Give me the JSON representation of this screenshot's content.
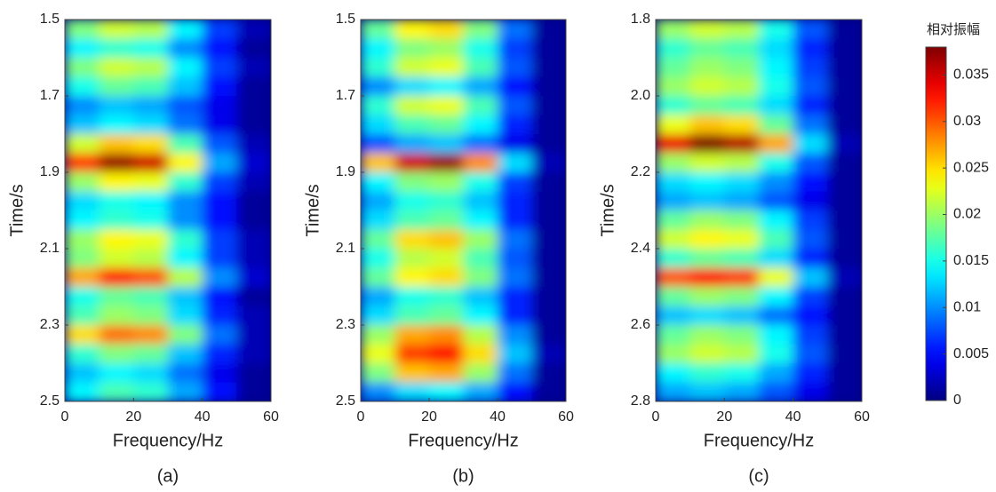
{
  "chart_data": [
    {
      "type": "heatmap",
      "subtitle": "(a)",
      "xlabel": "Frequency/Hz",
      "ylabel": "Time/s",
      "colormap": "jet",
      "y_reversed": true,
      "xlim": [
        0,
        60
      ],
      "ylim": [
        1.5,
        2.5
      ],
      "xticks": [
        0,
        20,
        40,
        60
      ],
      "yticks": [
        1.5,
        1.7,
        1.9,
        2.1,
        2.3,
        2.5
      ],
      "x": [
        5,
        15,
        25,
        35,
        45,
        55
      ],
      "y": [
        1.525,
        1.575,
        1.625,
        1.675,
        1.725,
        1.775,
        1.825,
        1.875,
        1.925,
        1.975,
        2.025,
        2.075,
        2.125,
        2.175,
        2.225,
        2.275,
        2.325,
        2.375,
        2.425,
        2.475
      ],
      "z": [
        [
          0.019,
          0.022,
          0.021,
          0.014,
          0.007,
          0.002
        ],
        [
          0.014,
          0.016,
          0.015,
          0.01,
          0.005,
          0.001
        ],
        [
          0.019,
          0.022,
          0.021,
          0.014,
          0.007,
          0.002
        ],
        [
          0.015,
          0.018,
          0.017,
          0.012,
          0.005,
          0.001
        ],
        [
          0.01,
          0.012,
          0.011,
          0.008,
          0.004,
          0.001
        ],
        [
          0.012,
          0.014,
          0.013,
          0.009,
          0.004,
          0.001
        ],
        [
          0.022,
          0.026,
          0.025,
          0.017,
          0.008,
          0.002
        ],
        [
          0.031,
          0.037,
          0.035,
          0.024,
          0.011,
          0.003
        ],
        [
          0.02,
          0.024,
          0.023,
          0.016,
          0.007,
          0.002
        ],
        [
          0.013,
          0.015,
          0.014,
          0.01,
          0.005,
          0.001
        ],
        [
          0.014,
          0.016,
          0.015,
          0.01,
          0.005,
          0.001
        ],
        [
          0.02,
          0.024,
          0.023,
          0.016,
          0.007,
          0.002
        ],
        [
          0.019,
          0.022,
          0.021,
          0.014,
          0.007,
          0.002
        ],
        [
          0.027,
          0.032,
          0.03,
          0.021,
          0.01,
          0.003
        ],
        [
          0.015,
          0.018,
          0.017,
          0.012,
          0.005,
          0.001
        ],
        [
          0.017,
          0.02,
          0.019,
          0.013,
          0.006,
          0.002
        ],
        [
          0.025,
          0.029,
          0.028,
          0.019,
          0.009,
          0.002
        ],
        [
          0.016,
          0.019,
          0.018,
          0.012,
          0.006,
          0.002
        ],
        [
          0.012,
          0.014,
          0.013,
          0.009,
          0.004,
          0.001
        ],
        [
          0.014,
          0.017,
          0.016,
          0.011,
          0.005,
          0.001
        ]
      ]
    },
    {
      "type": "heatmap",
      "subtitle": "(b)",
      "xlabel": "Frequency/Hz",
      "ylabel": "Time/s",
      "colormap": "jet",
      "y_reversed": true,
      "xlim": [
        0,
        60
      ],
      "ylim": [
        1.5,
        2.5
      ],
      "xticks": [
        0,
        20,
        40,
        60
      ],
      "yticks": [
        1.5,
        1.7,
        1.9,
        2.1,
        2.3,
        2.5
      ],
      "x": [
        5,
        15,
        25,
        35,
        45,
        55
      ],
      "y": [
        1.525,
        1.575,
        1.625,
        1.675,
        1.725,
        1.775,
        1.825,
        1.875,
        1.925,
        1.975,
        2.025,
        2.075,
        2.125,
        2.175,
        2.225,
        2.275,
        2.325,
        2.375,
        2.425,
        2.475
      ],
      "z": [
        [
          0.018,
          0.024,
          0.025,
          0.019,
          0.009,
          0.001
        ],
        [
          0.014,
          0.019,
          0.02,
          0.015,
          0.007,
          0.001
        ],
        [
          0.016,
          0.022,
          0.023,
          0.017,
          0.008,
          0.001
        ],
        [
          0.01,
          0.013,
          0.014,
          0.011,
          0.005,
          0.001
        ],
        [
          0.016,
          0.022,
          0.023,
          0.017,
          0.008,
          0.001
        ],
        [
          0.013,
          0.017,
          0.018,
          0.014,
          0.006,
          0.001
        ],
        [
          0.008,
          0.011,
          0.012,
          0.009,
          0.004,
          0.001
        ],
        [
          0.026,
          0.035,
          0.037,
          0.028,
          0.013,
          0.002
        ],
        [
          0.014,
          0.019,
          0.02,
          0.015,
          0.007,
          0.001
        ],
        [
          0.011,
          0.015,
          0.016,
          0.012,
          0.006,
          0.001
        ],
        [
          0.013,
          0.017,
          0.018,
          0.014,
          0.006,
          0.001
        ],
        [
          0.018,
          0.025,
          0.026,
          0.02,
          0.009,
          0.001
        ],
        [
          0.015,
          0.021,
          0.022,
          0.017,
          0.008,
          0.001
        ],
        [
          0.018,
          0.024,
          0.025,
          0.019,
          0.009,
          0.001
        ],
        [
          0.011,
          0.015,
          0.016,
          0.012,
          0.006,
          0.001
        ],
        [
          0.013,
          0.017,
          0.018,
          0.014,
          0.006,
          0.001
        ],
        [
          0.02,
          0.027,
          0.028,
          0.021,
          0.01,
          0.001
        ],
        [
          0.023,
          0.031,
          0.033,
          0.025,
          0.012,
          0.002
        ],
        [
          0.019,
          0.026,
          0.027,
          0.02,
          0.009,
          0.001
        ],
        [
          0.01,
          0.013,
          0.014,
          0.011,
          0.005,
          0.001
        ]
      ]
    },
    {
      "type": "heatmap",
      "subtitle": "(c)",
      "xlabel": "Frequency/Hz",
      "ylabel": "Time/s",
      "colormap": "jet",
      "y_reversed": true,
      "xlim": [
        0,
        60
      ],
      "ylim": [
        1.8,
        2.8
      ],
      "xticks": [
        0,
        20,
        40,
        60
      ],
      "yticks": [
        1.8,
        {
          "value": 2,
          "label": "2.0"
        },
        2.2,
        2.4,
        2.6,
        2.8
      ],
      "x": [
        5,
        15,
        25,
        35,
        45,
        55
      ],
      "y": [
        1.825,
        1.875,
        1.925,
        1.975,
        2.025,
        2.075,
        2.125,
        2.175,
        2.225,
        2.275,
        2.325,
        2.375,
        2.425,
        2.475,
        2.525,
        2.575,
        2.625,
        2.675,
        2.725,
        2.775
      ],
      "z": [
        [
          0.02,
          0.022,
          0.021,
          0.015,
          0.008,
          0.001
        ],
        [
          0.016,
          0.018,
          0.017,
          0.013,
          0.006,
          0.001
        ],
        [
          0.018,
          0.02,
          0.019,
          0.014,
          0.007,
          0.001
        ],
        [
          0.02,
          0.022,
          0.021,
          0.015,
          0.008,
          0.001
        ],
        [
          0.016,
          0.018,
          0.017,
          0.013,
          0.006,
          0.001
        ],
        [
          0.023,
          0.026,
          0.025,
          0.018,
          0.009,
          0.001
        ],
        [
          0.034,
          0.038,
          0.036,
          0.027,
          0.013,
          0.002
        ],
        [
          0.02,
          0.022,
          0.021,
          0.015,
          0.008,
          0.001
        ],
        [
          0.013,
          0.014,
          0.013,
          0.01,
          0.005,
          0.001
        ],
        [
          0.011,
          0.012,
          0.011,
          0.008,
          0.004,
          0.001
        ],
        [
          0.018,
          0.02,
          0.019,
          0.014,
          0.007,
          0.001
        ],
        [
          0.022,
          0.024,
          0.023,
          0.017,
          0.008,
          0.001
        ],
        [
          0.016,
          0.018,
          0.017,
          0.013,
          0.006,
          0.001
        ],
        [
          0.03,
          0.033,
          0.031,
          0.023,
          0.012,
          0.002
        ],
        [
          0.018,
          0.02,
          0.019,
          0.014,
          0.007,
          0.001
        ],
        [
          0.012,
          0.013,
          0.012,
          0.009,
          0.005,
          0.001
        ],
        [
          0.018,
          0.02,
          0.019,
          0.014,
          0.007,
          0.001
        ],
        [
          0.02,
          0.022,
          0.021,
          0.015,
          0.008,
          0.001
        ],
        [
          0.014,
          0.016,
          0.015,
          0.011,
          0.006,
          0.001
        ],
        [
          0.011,
          0.012,
          0.011,
          0.008,
          0.004,
          0.001
        ]
      ]
    }
  ],
  "colorbar": {
    "title": "相对振幅",
    "colormap": "jet",
    "clim": [
      0,
      0.038
    ],
    "ticks": [
      0,
      0.005,
      0.01,
      0.015,
      0.02,
      0.025,
      0.03,
      0.035
    ]
  }
}
